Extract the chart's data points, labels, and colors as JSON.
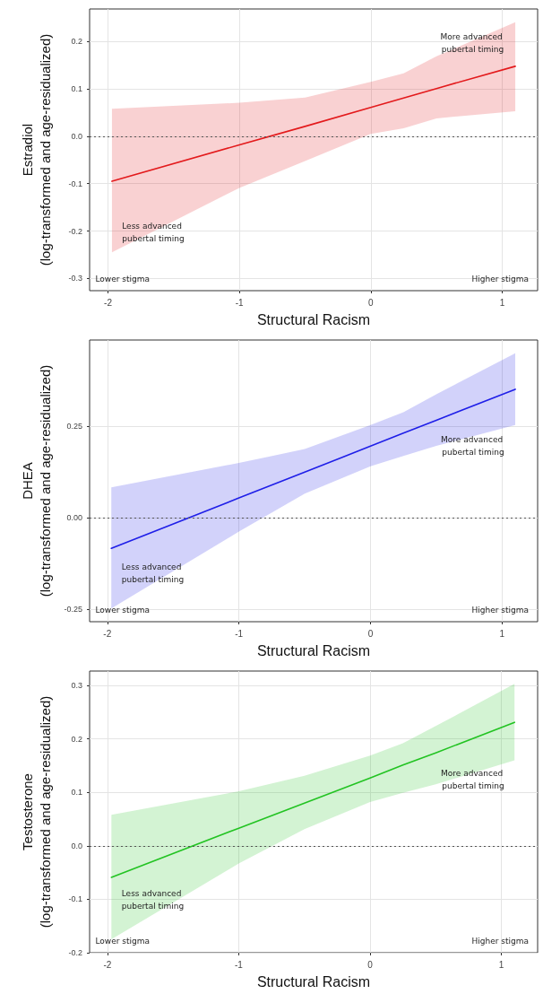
{
  "chart_data": [
    {
      "type": "line",
      "xlabel": "Structural Racism",
      "ylabel": "Estradiol\n(log-transformed and age-residualized)",
      "xlim": [
        -2.14,
        1.27
      ],
      "xticks": [
        -2,
        -1,
        0,
        1
      ],
      "ylim": [
        -0.326,
        0.269
      ],
      "yticks": [
        {
          "value": -0.3,
          "label": "-0.3"
        },
        {
          "value": -0.2,
          "label": "-0.2"
        },
        {
          "value": -0.1,
          "label": "-0.1"
        },
        {
          "value": 0,
          "label": "0.0"
        },
        {
          "value": 0.1,
          "label": "0.1"
        },
        {
          "value": 0.2,
          "label": "0.2"
        }
      ],
      "grid": true,
      "marker": "none",
      "line_style": "solid",
      "series": [
        {
          "color": "#e31a1c",
          "x": [
            -1.97,
            -1,
            -0.5,
            0,
            0.25,
            0.5,
            1.1
          ],
          "values": [
            -0.095,
            -0.018,
            0.021,
            0.061,
            0.081,
            0.101,
            0.148
          ],
          "lower": [
            -0.245,
            -0.109,
            -0.052,
            0.005,
            0.017,
            0.038,
            0.053
          ],
          "upper": [
            0.058,
            0.071,
            0.082,
            0.115,
            0.133,
            0.169,
            0.241
          ]
        }
      ],
      "ref_lines": [
        {
          "axis": "y",
          "value": 0,
          "color": "#555555",
          "line_style": "dotted"
        }
      ],
      "annotations": [
        "More advanced pubertal timing",
        "Less advanced pubertal timing",
        "Lower stigma",
        "Higher stigma"
      ]
    },
    {
      "type": "line",
      "xlabel": "Structural Racism",
      "ylabel": "DHEA\n(log-transformed and age-residualized)",
      "xlim": [
        -2.135,
        1.27
      ],
      "xticks": [
        -2,
        -1,
        0,
        1
      ],
      "ylim": [
        -0.285,
        0.487
      ],
      "yticks": [
        {
          "value": -0.25,
          "label": "-0.25"
        },
        {
          "value": 0,
          "label": "0.00"
        },
        {
          "value": 0.25,
          "label": "0.25"
        }
      ],
      "grid": true,
      "marker": "none",
      "line_style": "solid",
      "series": [
        {
          "color": "#1f1fe8",
          "x": [
            -1.97,
            -1,
            -0.5,
            0,
            0.25,
            0.5,
            1.1
          ],
          "values": [
            -0.084,
            0.054,
            0.125,
            0.196,
            0.232,
            0.267,
            0.352
          ],
          "lower": [
            -0.249,
            -0.038,
            0.066,
            0.141,
            0.169,
            0.197,
            0.254
          ],
          "upper": [
            0.083,
            0.15,
            0.188,
            0.254,
            0.289,
            0.338,
            0.451
          ]
        }
      ],
      "ref_lines": [
        {
          "axis": "y",
          "value": 0,
          "color": "#555555",
          "line_style": "dotted"
        }
      ],
      "annotations": [
        "More advanced pubertal timing",
        "Less advanced pubertal timing",
        "Lower stigma",
        "Higher stigma"
      ]
    },
    {
      "type": "line",
      "xlabel": "Structural Racism",
      "ylabel": "Testosterone\n(log-transformed and age-residualized)",
      "xlim": [
        -2.136,
        1.276
      ],
      "xticks": [
        -2,
        -1,
        0,
        1
      ],
      "ylim": [
        -0.2,
        0.327
      ],
      "yticks": [
        {
          "value": -0.2,
          "label": "-0.2"
        },
        {
          "value": -0.1,
          "label": "-0.1"
        },
        {
          "value": 0,
          "label": "0.0"
        },
        {
          "value": 0.1,
          "label": "0.1"
        },
        {
          "value": 0.2,
          "label": "0.2"
        },
        {
          "value": 0.3,
          "label": "0.3"
        }
      ],
      "grid": true,
      "marker": "none",
      "line_style": "solid",
      "series": [
        {
          "color": "#22c322",
          "x": [
            -1.97,
            -1,
            -0.5,
            0,
            0.25,
            0.5,
            1.1
          ],
          "values": [
            -0.059,
            0.033,
            0.08,
            0.127,
            0.151,
            0.174,
            0.231
          ],
          "lower": [
            -0.175,
            -0.033,
            0.031,
            0.082,
            0.099,
            0.115,
            0.16
          ],
          "upper": [
            0.058,
            0.102,
            0.131,
            0.169,
            0.192,
            0.224,
            0.303
          ]
        }
      ],
      "ref_lines": [
        {
          "axis": "y",
          "value": 0,
          "color": "#555555",
          "line_style": "dotted"
        }
      ],
      "annotations": [
        "More advanced pubertal timing",
        "Less advanced pubertal timing",
        "Lower stigma",
        "Higher stigma"
      ]
    }
  ]
}
